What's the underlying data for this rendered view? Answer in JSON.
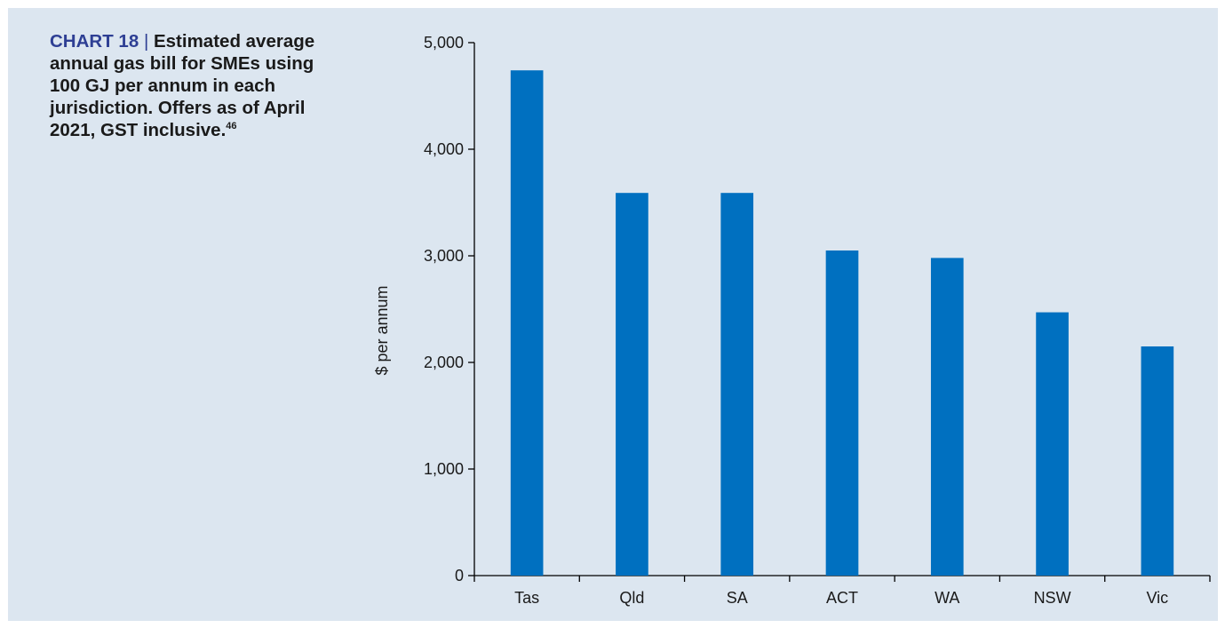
{
  "caption": {
    "label": "CHART 18",
    "separator": "|",
    "text": "Estimated average annual gas bill for SMEs using 100 GJ per annum in each jurisdiction. Offers as of April 2021, GST inclusive.",
    "footnote": "46"
  },
  "colors": {
    "panel_background": "#dce6f0",
    "bar": "#0070c0",
    "caption_label": "#2e3f94"
  },
  "chart_data": {
    "type": "bar",
    "title": "",
    "xlabel": "",
    "ylabel": "$ per annum",
    "categories": [
      "Tas",
      "Qld",
      "SA",
      "ACT",
      "WA",
      "NSW",
      "Vic"
    ],
    "values": [
      4740,
      3590,
      3590,
      3050,
      2980,
      2470,
      2150
    ],
    "ylim": [
      0,
      5000
    ],
    "yticks": [
      0,
      1000,
      2000,
      3000,
      4000,
      5000
    ],
    "ytick_labels": [
      "0",
      "1,000",
      "2,000",
      "3,000",
      "4,000",
      "5,000"
    ],
    "grid": false,
    "legend": "none"
  }
}
